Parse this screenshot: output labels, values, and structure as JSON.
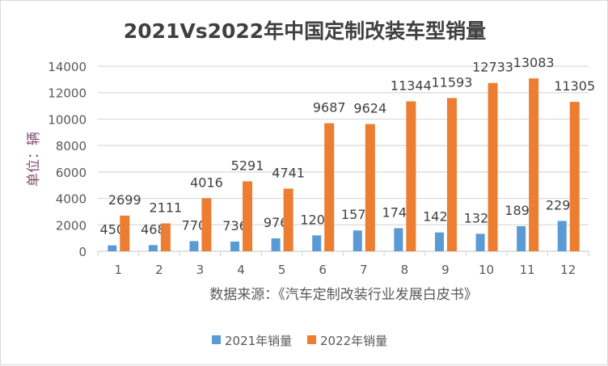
{
  "chart_data": {
    "type": "bar",
    "title": "2021Vs2022年中国定制改装车型销量",
    "xlabel": "数据来源：《汽车定制改装行业发展白皮书》",
    "ylabel": "单位：辆",
    "ylim": [
      0,
      14000
    ],
    "yticks": [
      0,
      2000,
      4000,
      6000,
      8000,
      10000,
      12000,
      14000
    ],
    "grid": true,
    "legend_position": "bottom",
    "categories": [
      "1",
      "2",
      "3",
      "4",
      "5",
      "6",
      "7",
      "8",
      "9",
      "10",
      "11",
      "12"
    ],
    "series": [
      {
        "name": "2021年销量",
        "color": "#5b9bd5",
        "values": [
          450,
          468,
          770,
          736,
          976,
          1204,
          1577,
          1748,
          1424,
          1323,
          1894,
          2295
        ]
      },
      {
        "name": "2022年销量",
        "color": "#ed7d31",
        "values": [
          2699,
          2111,
          4016,
          5291,
          4741,
          9687,
          9624,
          11344,
          11593,
          12733,
          13083,
          11305
        ]
      }
    ]
  }
}
